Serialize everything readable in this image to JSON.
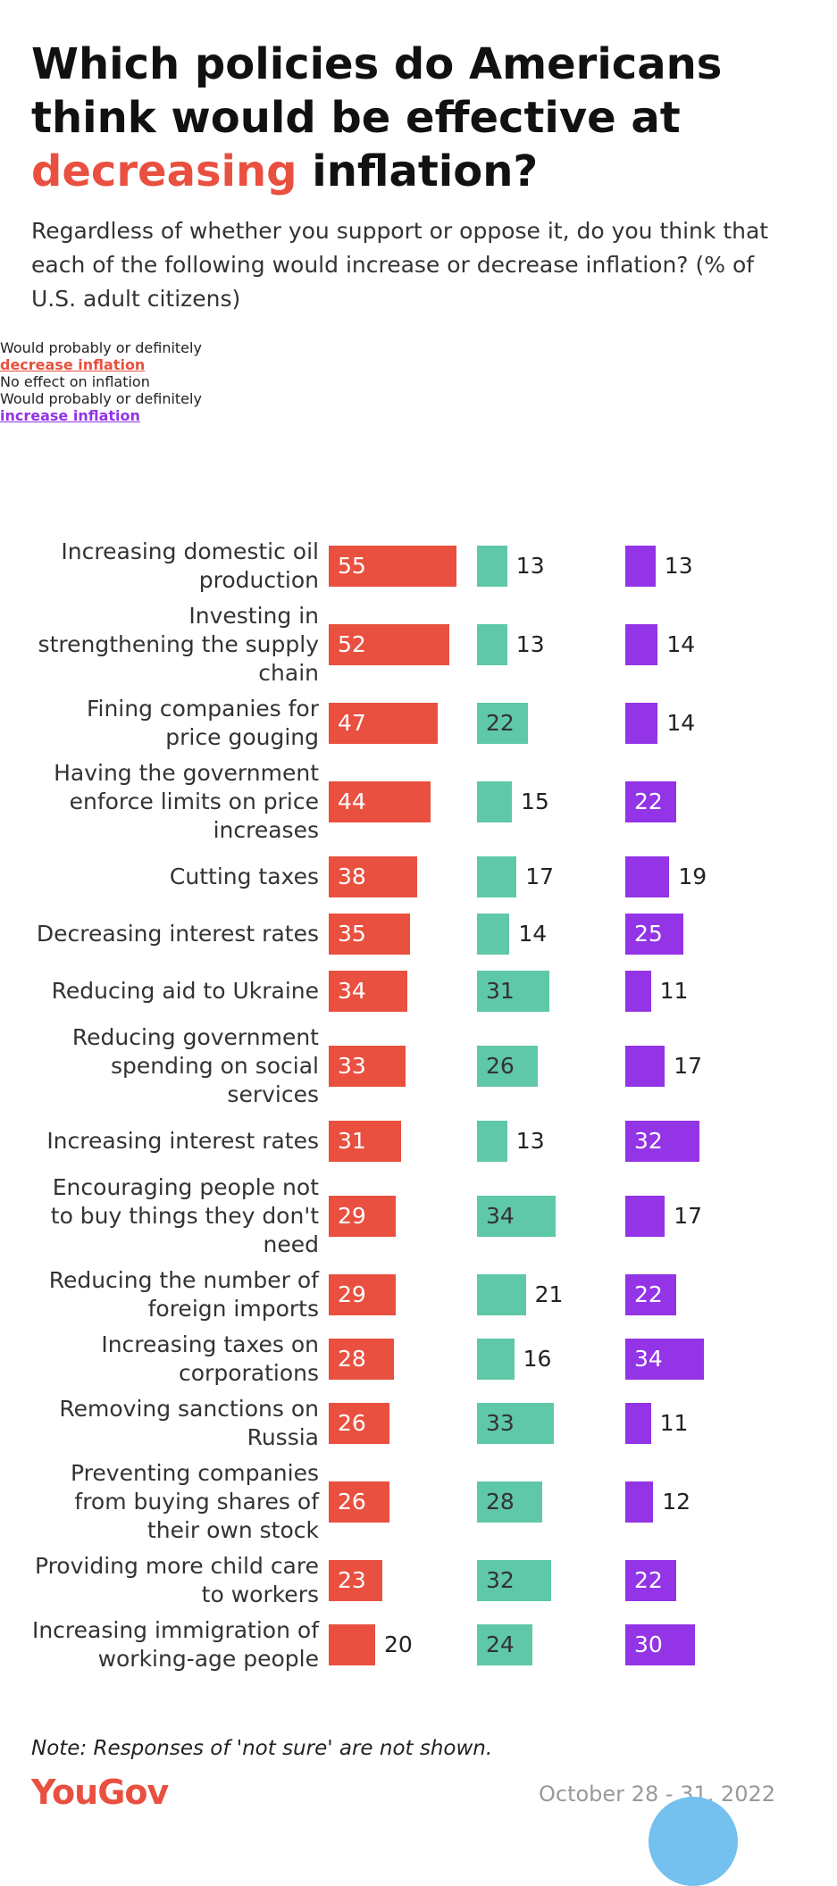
{
  "chart_data": {
    "type": "bar",
    "title": [
      {
        "text": "Which policies do Americans think would be effective at "
      },
      {
        "text": "decreasing",
        "color": "#e9503f"
      },
      {
        "text": " inflation?"
      }
    ],
    "subtitle": "Regardless of whether you support or oppose it, do you think that each of the following would increase or decrease inflation? (% of U.S. adult citizens)",
    "categories": [
      "Increasing domestic oil production",
      "Investing in strengthening the supply chain",
      "Fining companies for price gouging",
      "Having the government enforce limits on price increases",
      "Cutting taxes",
      "Decreasing interest rates",
      "Reducing aid to Ukraine",
      "Reducing government spending on social services",
      "Increasing interest rates",
      "Encouraging people not to buy things they don't need",
      "Reducing the number of foreign imports",
      "Increasing taxes on corporations",
      "Removing sanctions on Russia",
      "Preventing companies from buying shares of their own stock",
      "Providing more child care to workers",
      "Increasing immigration of working-age people"
    ],
    "series": [
      {
        "name": "Would probably or definitely",
        "emphasis": "decrease inflation",
        "color": "#e9503f",
        "values": [
          55,
          52,
          47,
          44,
          38,
          35,
          34,
          33,
          31,
          29,
          29,
          28,
          26,
          26,
          23,
          20
        ]
      },
      {
        "name": "No effect on inflation",
        "color": "#5ec8a8",
        "values": [
          13,
          13,
          22,
          15,
          17,
          14,
          31,
          26,
          13,
          34,
          21,
          16,
          33,
          28,
          32,
          24
        ]
      },
      {
        "name": "Would probably or definitely",
        "emphasis": "increase inflation",
        "color": "#9334e6",
        "values": [
          13,
          14,
          14,
          22,
          19,
          25,
          11,
          17,
          32,
          17,
          22,
          34,
          11,
          12,
          22,
          30
        ]
      }
    ],
    "note": "Note: Responses of 'not sure' are not shown.",
    "source": "YouGov",
    "date": "October 28 - 31, 2022"
  }
}
